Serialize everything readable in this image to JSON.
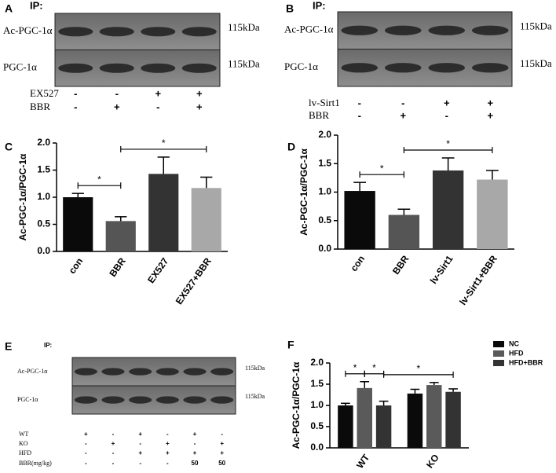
{
  "blots": [
    {
      "letter": "A",
      "ip": "IP:",
      "rows": [
        "Ac-PGC-1α",
        "PGC-1α"
      ],
      "kda": [
        "115kDa",
        "115kDa"
      ],
      "conditions": [
        {
          "label": "EX527",
          "marks": [
            "-",
            "-",
            "+",
            "+"
          ]
        },
        {
          "label": "BBR",
          "marks": [
            "-",
            "+",
            "-",
            "+"
          ]
        }
      ]
    },
    {
      "letter": "B",
      "ip": "IP:",
      "rows": [
        "Ac-PGC-1α",
        "PGC-1α"
      ],
      "kda": [
        "115kDa",
        "115kDa"
      ],
      "conditions": [
        {
          "label": "lv-Sirt1",
          "marks": [
            "-",
            "-",
            "+",
            "+"
          ]
        },
        {
          "label": "BBR",
          "marks": [
            "-",
            "+",
            "-",
            "+"
          ]
        }
      ]
    },
    {
      "letter": "E",
      "ip": "IP:",
      "rows": [
        "Ac-PGC-1α",
        "PGC-1α"
      ],
      "kda": [
        "115kDa",
        "115kDa"
      ],
      "conditions": [
        {
          "label": "WT",
          "marks": [
            "+",
            "-",
            "+",
            "-",
            "+",
            "-"
          ]
        },
        {
          "label": "KO",
          "marks": [
            "-",
            "+",
            "-",
            "+",
            "-",
            "+"
          ]
        },
        {
          "label": "HFD",
          "marks": [
            "-",
            "-",
            "+",
            "+",
            "+",
            "+"
          ]
        },
        {
          "label": "BBR(mg/kg)",
          "marks": [
            "-",
            "-",
            "-",
            "-",
            "50",
            "50"
          ]
        }
      ]
    }
  ],
  "chart_data": [
    {
      "letter": "C",
      "type": "bar",
      "y_label": "Ac-PGC-1α/PGC-1α",
      "categories": [
        "con",
        "BBR",
        "EX527",
        "EX527+BBR"
      ],
      "values": [
        1.0,
        0.56,
        1.43,
        1.17
      ],
      "errors": [
        0.07,
        0.08,
        0.31,
        0.2
      ],
      "colors": [
        "#0a0a0a",
        "#555555",
        "#333333",
        "#a8a8a8"
      ],
      "ylim": [
        0,
        2.0
      ],
      "yticks": [
        {
          "value": 0,
          "label": "0.0"
        },
        0.5,
        {
          "value": 1,
          "label": "1.0"
        },
        1.5,
        {
          "value": 2,
          "label": "2.0"
        }
      ],
      "significance": [
        {
          "text": "*",
          "between": [
            "con",
            "BBR"
          ]
        },
        {
          "text": "*",
          "between": [
            "BBR",
            "EX527+BBR"
          ]
        }
      ]
    },
    {
      "letter": "D",
      "type": "bar",
      "y_label": "Ac-PGC-1α/PGC-1α",
      "categories": [
        "con",
        "BBR",
        "lv-Sirt1",
        "lv-Sirt1+BBR"
      ],
      "values": [
        1.02,
        0.6,
        1.38,
        1.22
      ],
      "errors": [
        0.15,
        0.1,
        0.22,
        0.16
      ],
      "colors": [
        "#0a0a0a",
        "#555555",
        "#333333",
        "#a8a8a8"
      ],
      "ylim": [
        0,
        2.0
      ],
      "yticks": [
        {
          "value": 0,
          "label": "0.0"
        },
        0.5,
        {
          "value": 1,
          "label": "1.0"
        },
        1.5,
        {
          "value": 2,
          "label": "2.0"
        }
      ],
      "significance": [
        {
          "text": "*",
          "between": [
            "con",
            "BBR"
          ]
        },
        {
          "text": "*",
          "between": [
            "BBR",
            "lv-Sirt1+BBR"
          ]
        }
      ]
    },
    {
      "letter": "F",
      "type": "grouped_bar",
      "y_label": "Ac-PGC-1α/PGC-1α",
      "categories": [
        "WT",
        "KO"
      ],
      "series": [
        {
          "name": "NC",
          "color": "#0a0a0a",
          "values": [
            1.0,
            1.28
          ],
          "errors": [
            0.05,
            0.1
          ]
        },
        {
          "name": "HFD",
          "color": "#5a5a5a",
          "values": [
            1.41,
            1.48
          ],
          "errors": [
            0.15,
            0.06
          ]
        },
        {
          "name": "HFD+BBR",
          "color": "#333333",
          "values": [
            1.0,
            1.32
          ],
          "errors": [
            0.1,
            0.07
          ]
        }
      ],
      "ylim": [
        0,
        2.0
      ],
      "yticks": [
        {
          "value": 0,
          "label": "0.0"
        },
        0.5,
        {
          "value": 1,
          "label": "1.0"
        },
        1.5,
        {
          "value": 2,
          "label": "2.0"
        }
      ],
      "legend": "upper right",
      "significance": [
        {
          "text": "*",
          "between": [
            [
              "WT",
              "NC"
            ],
            [
              "WT",
              "HFD"
            ]
          ]
        },
        {
          "text": "*",
          "between": [
            [
              "WT",
              "HFD"
            ],
            [
              "WT",
              "HFD+BBR"
            ]
          ]
        },
        {
          "text": "*",
          "between": [
            [
              "WT",
              "HFD+BBR"
            ],
            [
              "KO",
              "HFD+BBR"
            ]
          ]
        }
      ]
    }
  ]
}
